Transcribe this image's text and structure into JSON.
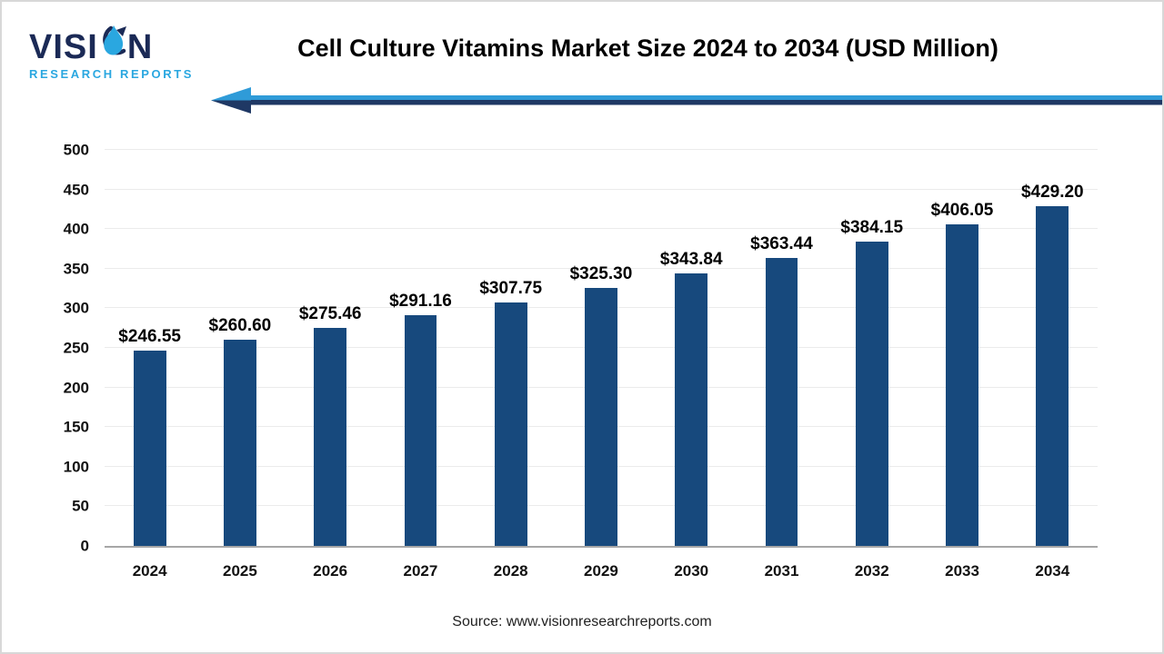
{
  "brand": {
    "word_start": "VISI",
    "word_end": "N",
    "tagline": "RESEARCH REPORTS",
    "colors": {
      "navy": "#1B2A56",
      "light_blue": "#2AA7E0"
    }
  },
  "header": {
    "title": "Cell Culture Vitamins Market Size 2024 to 2034 (USD Million)"
  },
  "arrow": {
    "direction": "left",
    "colors": {
      "top": "#2F9BD8",
      "bottom": "#1F3864"
    }
  },
  "chart_data": {
    "type": "bar",
    "title": "Cell Culture Vitamins Market Size 2024 to 2034 (USD Million)",
    "categories": [
      "2024",
      "2025",
      "2026",
      "2027",
      "2028",
      "2029",
      "2030",
      "2031",
      "2032",
      "2033",
      "2034"
    ],
    "values": [
      246.55,
      260.6,
      275.46,
      291.16,
      307.75,
      325.3,
      343.84,
      363.44,
      384.15,
      406.05,
      429.2
    ],
    "value_labels": [
      "$246.55",
      "$260.60",
      "$275.46",
      "$291.16",
      "$307.75",
      "$325.30",
      "$343.84",
      "$363.44",
      "$384.15",
      "$406.05",
      "$429.20"
    ],
    "xlabel": "",
    "ylabel": "",
    "ylim": [
      0,
      500
    ],
    "ytick_step": 50,
    "grid": true,
    "legend": false,
    "bar_color": "#17497D",
    "gridline_color": "#EBEBEB",
    "axis_line_color": "#A6A6A6"
  },
  "footer": {
    "source": "Source: www.visionresearchreports.com"
  }
}
